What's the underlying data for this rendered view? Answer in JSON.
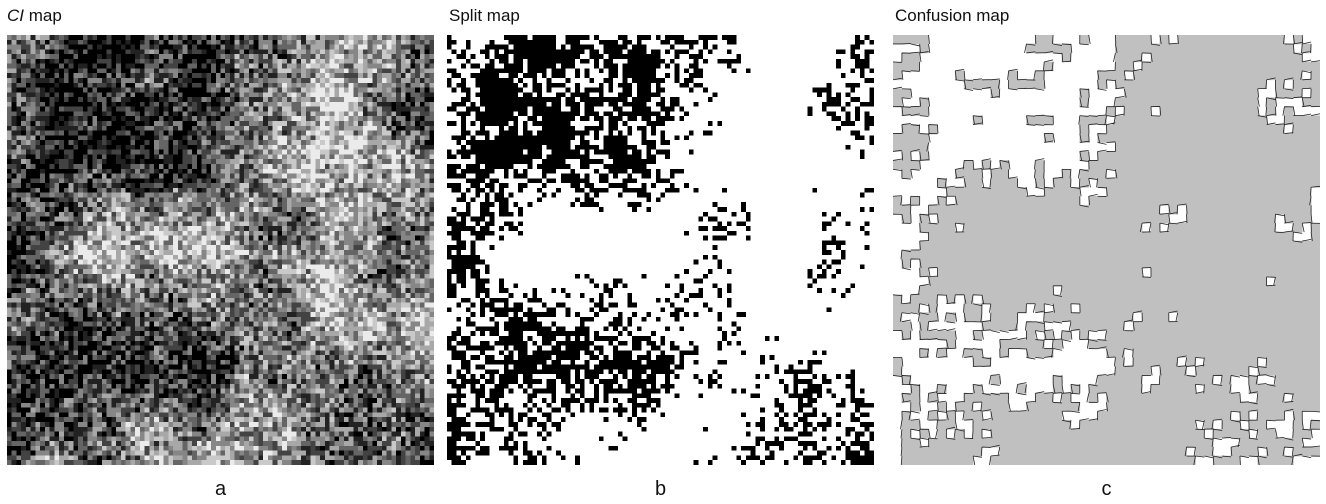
{
  "panels": [
    {
      "title_italic": "CI",
      "title": "map",
      "caption": "a"
    },
    {
      "title": "Split map",
      "caption": "b"
    },
    {
      "title": "Confusion map",
      "caption": "c"
    }
  ]
}
